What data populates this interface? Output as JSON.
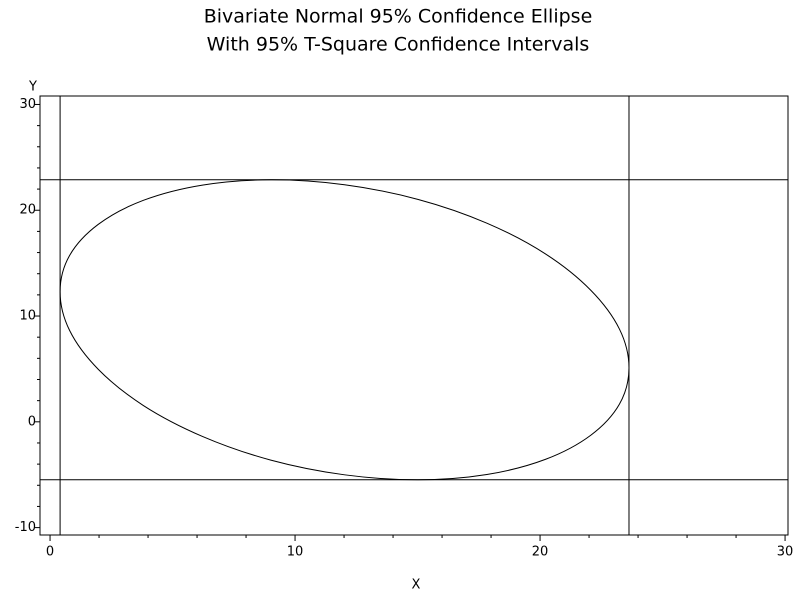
{
  "chart_data": {
    "type": "line",
    "title": "Bivariate Normal 95% Confidence Ellipse",
    "subtitle": "With 95% T-Square Confidence Intervals",
    "x_label": "X",
    "y_label": "Y",
    "xlim": [
      -0.41,
      30.12
    ],
    "ylim": [
      -10.7,
      30.8
    ],
    "xticks": [
      0,
      10,
      20,
      30
    ],
    "yticks": [
      {
        "value": -10,
        "label": "-10"
      },
      0,
      10,
      20,
      30
    ],
    "xminorticks": [
      2,
      4,
      6,
      8,
      12,
      14,
      16,
      18,
      22,
      24,
      26,
      28
    ],
    "yminorticks": [
      -8,
      -6,
      -4,
      -2,
      2,
      4,
      6,
      8,
      12,
      14,
      16,
      18,
      22,
      24,
      26,
      28
    ],
    "vlines": [
      0.41,
      23.63
    ],
    "hlines": [
      22.88,
      -5.48
    ],
    "color": "#000000",
    "x": [
      23.63,
      23.24,
      22.07,
      20.23,
      17.83,
      15.03,
      12.02,
      9.01,
      6.22,
      3.81,
      1.97,
      0.8,
      0.41,
      0.8,
      1.97,
      3.81,
      6.22,
      9.01,
      12.02,
      15.03,
      17.83,
      20.23,
      22.07,
      23.24,
      23.63
    ],
    "values": [
      5.1,
      8.77,
      12.44,
      15.86,
      18.78,
      21.02,
      22.41,
      22.88,
      22.38,
      20.94,
      18.67,
      15.73,
      12.3,
      8.63,
      4.96,
      1.54,
      -1.38,
      -3.62,
      -5.01,
      -5.48,
      -4.98,
      -3.54,
      -1.27,
      1.67,
      5.1
    ]
  }
}
